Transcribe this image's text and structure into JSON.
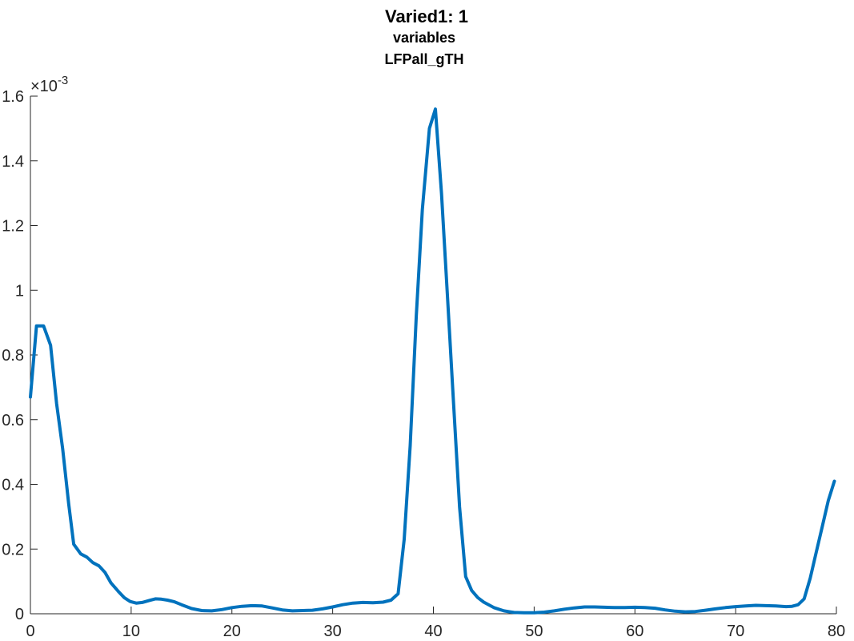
{
  "chart_data": {
    "type": "line",
    "title": "Varied1: 1",
    "subtitle": "variables",
    "subtitle2": "LFPall_gTH",
    "xlabel": "",
    "ylabel": "",
    "xlim": [
      0,
      80
    ],
    "ylim": [
      0,
      0.0016
    ],
    "y_exponent_label": "×10",
    "y_exponent_power": "-3",
    "x_ticks": [
      0,
      10,
      20,
      30,
      40,
      50,
      60,
      70,
      80
    ],
    "x_tick_labels": [
      "0",
      "10",
      "20",
      "30",
      "40",
      "50",
      "60",
      "70",
      "80"
    ],
    "y_ticks": [
      0,
      0.0002,
      0.0004,
      0.0006,
      0.0008,
      0.001,
      0.0012,
      0.0014,
      0.0016
    ],
    "y_tick_labels": [
      "0",
      "0.2",
      "0.4",
      "0.6",
      "0.8",
      "1",
      "1.2",
      "1.4",
      "1.6"
    ],
    "grid": false,
    "line_color": "#0072BD",
    "series": [
      {
        "x": [
          0,
          0.6,
          1.3,
          2,
          2.6,
          3.2,
          3.8,
          4.3,
          5,
          5.6,
          6.2,
          6.8,
          7.4,
          8,
          8.7,
          9.3,
          9.9,
          10.5,
          11.1,
          11.8,
          12.4,
          13,
          13.6,
          14.3,
          15,
          16,
          17,
          18,
          19,
          20,
          21,
          22,
          23,
          24,
          25,
          26,
          27,
          28,
          29,
          30,
          31,
          32,
          33,
          34,
          35,
          35.8,
          36.5,
          37.1,
          37.7,
          38.3,
          38.9,
          39.6,
          40.2,
          40.8,
          41.4,
          42,
          42.6,
          43.2,
          43.8,
          44.4,
          45,
          46,
          47,
          48,
          49,
          50,
          51,
          52,
          53,
          54,
          55,
          56,
          57,
          58,
          59,
          60,
          61,
          62,
          63,
          64,
          65,
          66,
          67,
          68,
          69,
          70,
          71,
          72,
          73,
          74,
          75,
          75.6,
          76.2,
          76.8,
          77.4,
          78,
          78.6,
          79.2,
          79.8
        ],
        "values": [
          0.00067,
          0.00089,
          0.00089,
          0.00083,
          0.00065,
          0.00051,
          0.00034,
          0.000215,
          0.000185,
          0.000175,
          0.000158,
          0.000148,
          0.000128,
          9.5e-05,
          7e-05,
          5e-05,
          3.8e-05,
          3.3e-05,
          3.5e-05,
          4.1e-05,
          4.6e-05,
          4.5e-05,
          4.2e-05,
          3.7e-05,
          2.8e-05,
          1.6e-05,
          1e-05,
          9e-06,
          1.3e-05,
          1.9e-05,
          2.3e-05,
          2.5e-05,
          2.4e-05,
          1.8e-05,
          1.2e-05,
          9e-06,
          1e-05,
          1.1e-05,
          1.5e-05,
          2.1e-05,
          2.8e-05,
          3.3e-05,
          3.5e-05,
          3.4e-05,
          3.6e-05,
          4.2e-05,
          6.2e-05,
          0.00023,
          0.00052,
          0.00092,
          0.00125,
          0.0015,
          0.00156,
          0.0013,
          0.00098,
          0.00065,
          0.00033,
          0.000115,
          7.2e-05,
          5e-05,
          3.6e-05,
          1.9e-05,
          9e-06,
          4e-06,
          3e-06,
          3e-06,
          5e-06,
          9e-06,
          1.4e-05,
          1.8e-05,
          2.1e-05,
          2.1e-05,
          2e-05,
          1.9e-05,
          1.9e-05,
          2e-05,
          1.9e-05,
          1.7e-05,
          1.2e-05,
          8e-06,
          6e-06,
          7e-06,
          1.1e-05,
          1.5e-05,
          1.9e-05,
          2.2e-05,
          2.4e-05,
          2.6e-05,
          2.5e-05,
          2.4e-05,
          2.2e-05,
          2.3e-05,
          2.8e-05,
          4.6e-05,
          0.00011,
          0.00019,
          0.00027,
          0.00035,
          0.00041
        ]
      }
    ]
  }
}
